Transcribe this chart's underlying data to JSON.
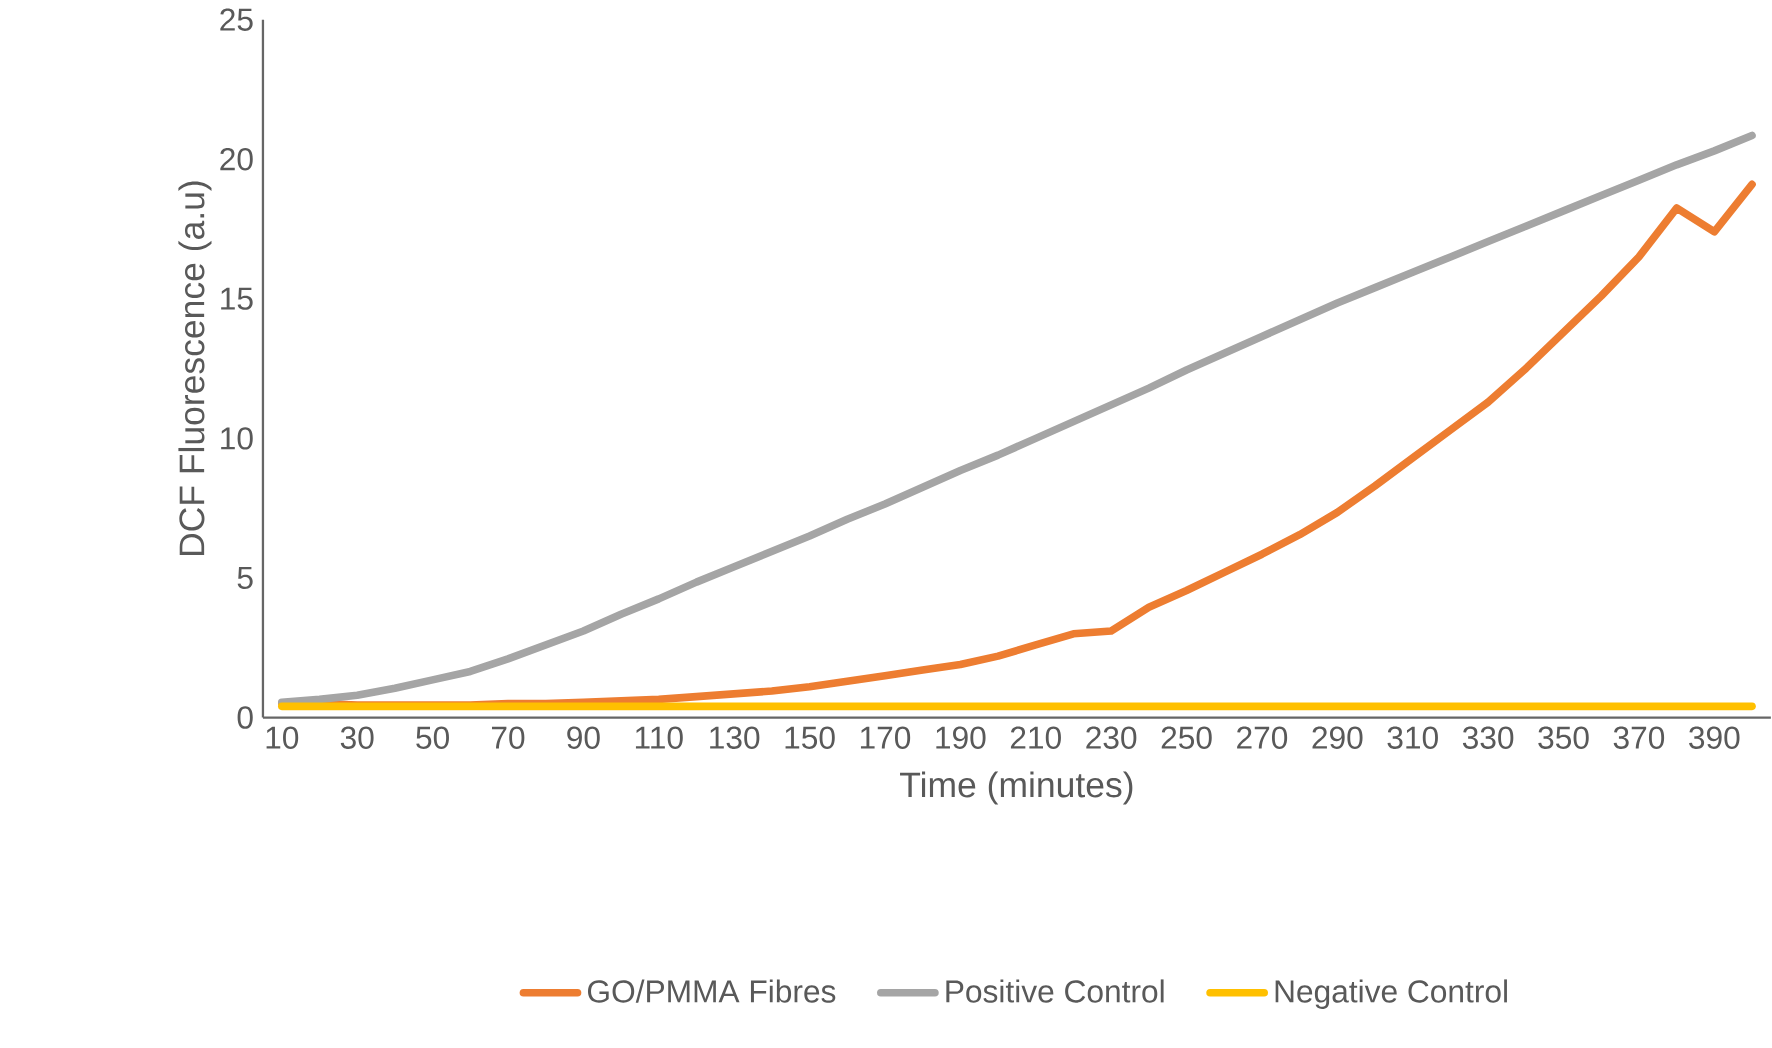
{
  "chart_data": {
    "type": "line",
    "xlabel": "Time (minutes)",
    "ylabel": "DCF Fluorescence (a.u)",
    "categories": [
      "10",
      null,
      "30",
      null,
      "50",
      null,
      "70",
      null,
      "90",
      null,
      "110",
      null,
      "130",
      null,
      "150",
      null,
      "170",
      null,
      "190",
      null,
      "210",
      null,
      "230",
      null,
      "250",
      null,
      "270",
      null,
      "290",
      null,
      "310",
      null,
      "330",
      null,
      "350",
      null,
      "370",
      null,
      "390",
      null
    ],
    "series": [
      {
        "name": "GO/PMMA Fibres",
        "color": "#ed7d31",
        "values": [
          0.5,
          0.5,
          0.45,
          0.45,
          0.45,
          0.45,
          0.5,
          0.5,
          0.55,
          0.6,
          0.65,
          0.75,
          0.85,
          0.95,
          1.1,
          1.3,
          1.5,
          1.7,
          1.9,
          2.2,
          2.6,
          3.0,
          3.1,
          3.95,
          4.55,
          5.2,
          5.85,
          6.55,
          7.35,
          8.3,
          9.3,
          10.3,
          11.3,
          12.5,
          13.8,
          15.1,
          16.5,
          18.25,
          17.4,
          19.1
        ]
      },
      {
        "name": "Positive Control",
        "color": "#a5a5a5",
        "values": [
          0.55,
          0.65,
          0.8,
          1.05,
          1.35,
          1.65,
          2.1,
          2.6,
          3.1,
          3.7,
          4.25,
          4.85,
          5.4,
          5.95,
          6.5,
          7.1,
          7.65,
          8.25,
          8.85,
          9.4,
          10.0,
          10.6,
          11.2,
          11.8,
          12.45,
          13.05,
          13.65,
          14.25,
          14.85,
          15.4,
          15.95,
          16.5,
          17.05,
          17.6,
          18.15,
          18.7,
          19.25,
          19.8,
          20.3,
          20.85
        ]
      },
      {
        "name": "Negative Control",
        "color": "#ffc000",
        "values": [
          0.4,
          0.4,
          0.4,
          0.4,
          0.4,
          0.4,
          0.4,
          0.4,
          0.4,
          0.4,
          0.4,
          0.4,
          0.4,
          0.4,
          0.4,
          0.4,
          0.4,
          0.4,
          0.4,
          0.4,
          0.4,
          0.4,
          0.4,
          0.4,
          0.4,
          0.4,
          0.4,
          0.4,
          0.4,
          0.4,
          0.4,
          0.4,
          0.4,
          0.4,
          0.4,
          0.4,
          0.4,
          0.4,
          0.4,
          0.4
        ]
      }
    ],
    "ylim": [
      0,
      25
    ],
    "yticks": [
      0,
      5,
      10,
      15,
      20,
      25
    ],
    "grid": false,
    "legend": "bottom",
    "marker": "none",
    "line_style": "solid"
  }
}
